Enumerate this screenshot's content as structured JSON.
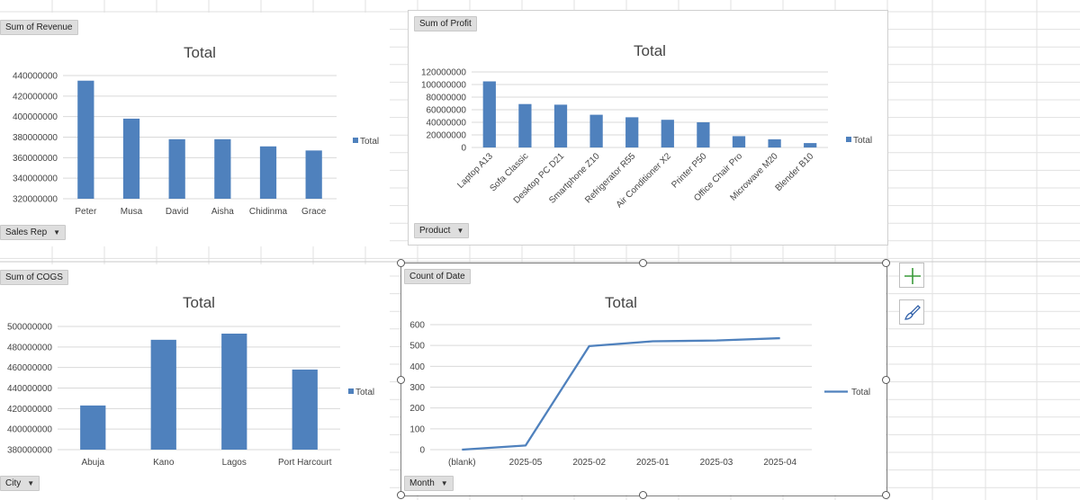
{
  "colors": {
    "series": "#4f81bd",
    "gridline": "#d9d9d9",
    "cellgrid": "#e1e1e1",
    "axis_text": "#444444"
  },
  "charts": {
    "revenue": {
      "field_button": "Sum of Revenue",
      "axis_field_button": "Sales Rep",
      "title": "Total",
      "legend": "Total",
      "dropdown_icon": "triangle-down-icon"
    },
    "profit": {
      "field_button": "Sum of Profit",
      "axis_field_button": "Product",
      "title": "Total",
      "legend": "Total",
      "dropdown_icon": "triangle-down-icon"
    },
    "cogs": {
      "field_button": "Sum of COGS",
      "axis_field_button": "City",
      "title": "Total",
      "legend": "Total",
      "dropdown_icon": "triangle-down-icon"
    },
    "date": {
      "field_button": "Count of Date",
      "axis_field_button": "Month",
      "title": "Total",
      "legend": "Total",
      "dropdown_icon": "triangle-down-icon"
    }
  },
  "side_buttons": [
    {
      "name": "chart-elements-button",
      "icon": "plus-icon"
    },
    {
      "name": "chart-styles-button",
      "icon": "paintbrush-icon"
    }
  ],
  "chart_data": [
    {
      "id": "revenue",
      "type": "bar",
      "title": "Total",
      "categories": [
        "Peter",
        "Musa",
        "David",
        "Aisha",
        "Chidinma",
        "Grace"
      ],
      "series": [
        {
          "name": "Total",
          "values": [
            435000000,
            398000000,
            378000000,
            378000000,
            371000000,
            367000000
          ]
        }
      ],
      "y_ticks": [
        "320000000",
        "340000000",
        "360000000",
        "380000000",
        "400000000",
        "420000000",
        "440000000"
      ],
      "ylim": [
        320000000,
        440000000
      ],
      "grid": true,
      "legend": "right"
    },
    {
      "id": "profit",
      "type": "bar",
      "title": "Total",
      "categories": [
        "Laptop A13",
        "Sofa Classic",
        "Desktop PC D21",
        "Smartphone Z10",
        "Refrigerator R55",
        "Air Conditioner X2",
        "Printer P50",
        "Office Chair Pro",
        "Microwave M20",
        "Blender B10"
      ],
      "series": [
        {
          "name": "Total",
          "values": [
            105000000,
            69000000,
            68000000,
            52000000,
            48000000,
            44000000,
            40000000,
            18000000,
            13000000,
            7000000
          ]
        }
      ],
      "y_ticks": [
        "0",
        "20000000",
        "40000000",
        "60000000",
        "80000000",
        "100000000",
        "120000000"
      ],
      "ylim": [
        0,
        120000000
      ],
      "grid": true,
      "legend": "right"
    },
    {
      "id": "cogs",
      "type": "bar",
      "title": "Total",
      "categories": [
        "Abuja",
        "Kano",
        "Lagos",
        "Port Harcourt"
      ],
      "series": [
        {
          "name": "Total",
          "values": [
            423000000,
            487000000,
            493000000,
            458000000
          ]
        }
      ],
      "y_ticks": [
        "380000000",
        "400000000",
        "420000000",
        "440000000",
        "460000000",
        "480000000",
        "500000000"
      ],
      "ylim": [
        380000000,
        500000000
      ],
      "grid": true,
      "legend": "right"
    },
    {
      "id": "date",
      "type": "line",
      "title": "Total",
      "categories": [
        "(blank)",
        "2025-05",
        "2025-02",
        "2025-01",
        "2025-03",
        "2025-04"
      ],
      "series": [
        {
          "name": "Total",
          "values": [
            0,
            20,
            497,
            520,
            524,
            535
          ]
        }
      ],
      "y_ticks": [
        "0",
        "100",
        "200",
        "300",
        "400",
        "500",
        "600"
      ],
      "ylim": [
        0,
        600
      ],
      "grid": true,
      "legend": "right"
    }
  ]
}
